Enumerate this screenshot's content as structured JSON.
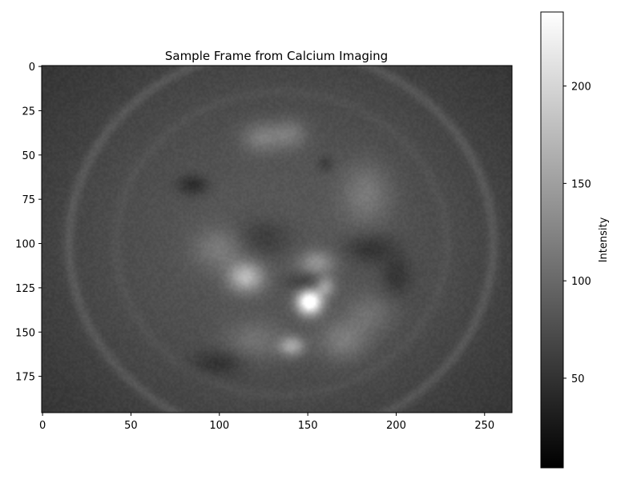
{
  "chart_data": {
    "type": "heatmap",
    "title": "Sample Frame from Calcium Imaging",
    "xlabel": "",
    "ylabel": "",
    "colormap": "gray",
    "image_shape": [
      196,
      266
    ],
    "xlim": [
      -0.5,
      265.5
    ],
    "ylim": [
      195.5,
      -0.5
    ],
    "x_ticks": [
      0,
      50,
      100,
      150,
      200,
      250
    ],
    "y_ticks": [
      0,
      25,
      50,
      75,
      100,
      125,
      150,
      175
    ],
    "colorbar": {
      "label": "Intensity",
      "range": [
        4,
        238
      ],
      "ticks": [
        50,
        100,
        150,
        200
      ]
    },
    "background_level": 58,
    "features": [
      {
        "x": 133,
        "y": 98,
        "sx": 90,
        "sy": 72,
        "value": 28
      },
      {
        "x": 151,
        "y": 133,
        "sx": 5,
        "sy": 5,
        "value": 185
      },
      {
        "x": 160,
        "y": 124,
        "sx": 4,
        "sy": 4,
        "value": 70
      },
      {
        "x": 115,
        "y": 119,
        "sx": 7,
        "sy": 6,
        "value": 90
      },
      {
        "x": 141,
        "y": 158,
        "sx": 5,
        "sy": 4,
        "value": 75
      },
      {
        "x": 155,
        "y": 111,
        "sx": 7,
        "sy": 5,
        "value": 55
      },
      {
        "x": 124,
        "y": 40,
        "sx": 8,
        "sy": 6,
        "value": 40
      },
      {
        "x": 140,
        "y": 38,
        "sx": 7,
        "sy": 6,
        "value": 35
      },
      {
        "x": 183,
        "y": 72,
        "sx": 10,
        "sy": 12,
        "value": 35
      },
      {
        "x": 100,
        "y": 103,
        "sx": 10,
        "sy": 8,
        "value": 35
      },
      {
        "x": 170,
        "y": 155,
        "sx": 10,
        "sy": 8,
        "value": 40
      },
      {
        "x": 120,
        "y": 155,
        "sx": 12,
        "sy": 8,
        "value": 30
      },
      {
        "x": 185,
        "y": 140,
        "sx": 10,
        "sy": 8,
        "value": 28
      },
      {
        "x": 85,
        "y": 67,
        "sx": 6,
        "sy": 4,
        "value": -35
      },
      {
        "x": 185,
        "y": 103,
        "sx": 10,
        "sy": 6,
        "value": -30
      },
      {
        "x": 125,
        "y": 97,
        "sx": 12,
        "sy": 8,
        "value": -25
      },
      {
        "x": 150,
        "y": 122,
        "sx": 8,
        "sy": 4,
        "value": -30
      },
      {
        "x": 200,
        "y": 118,
        "sx": 6,
        "sy": 8,
        "value": -25
      },
      {
        "x": 100,
        "y": 167,
        "sx": 10,
        "sy": 5,
        "value": -25
      },
      {
        "x": 160,
        "y": 55,
        "sx": 3,
        "sy": 3,
        "value": -20
      }
    ],
    "ring": {
      "cx": 135,
      "cy": 100,
      "rx": 120,
      "ry": 110,
      "width": 3,
      "value": 18
    }
  }
}
